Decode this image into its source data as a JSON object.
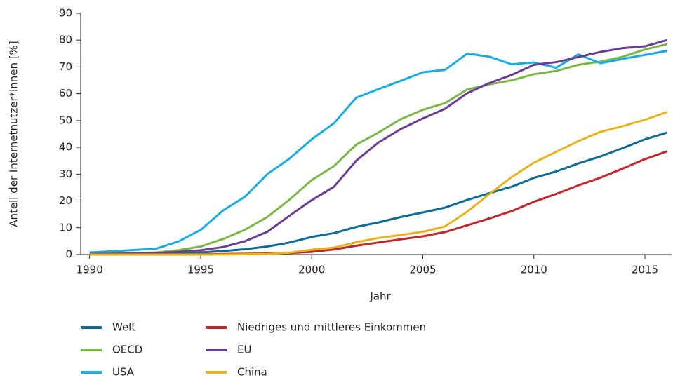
{
  "chart_data": {
    "type": "line",
    "x_label": "Jahr",
    "y_label": "Anteil der Internetnutzer*innen [%]",
    "x": [
      1990,
      1991,
      1992,
      1993,
      1994,
      1995,
      1996,
      1997,
      1998,
      1999,
      2000,
      2001,
      2002,
      2003,
      2004,
      2005,
      2006,
      2007,
      2008,
      2009,
      2010,
      2011,
      2012,
      2013,
      2014,
      2015,
      2016
    ],
    "xlim": [
      1989.6,
      2016.2
    ],
    "xticks": [
      1990,
      1995,
      2000,
      2005,
      2010,
      2015
    ],
    "ylim": [
      0,
      90
    ],
    "yticks": [
      0,
      10,
      20,
      30,
      40,
      50,
      60,
      70,
      80,
      90
    ],
    "grid": false,
    "series": [
      {
        "name": "Welt",
        "color": "#0b6c94",
        "values": [
          0.05,
          0.1,
          0.2,
          0.3,
          0.4,
          0.8,
          1.3,
          2,
          3,
          4.5,
          6.6,
          8,
          10.3,
          12,
          14,
          15.7,
          17.5,
          20.4,
          22.9,
          25.3,
          28.6,
          31,
          34,
          36.6,
          39.7,
          43,
          45.5
        ]
      },
      {
        "name": "OECD",
        "color": "#7ab648",
        "values": [
          0.3,
          0.4,
          0.5,
          0.8,
          1.6,
          3,
          5.8,
          9.3,
          14,
          20.5,
          27.8,
          33,
          41,
          45.5,
          50.5,
          54,
          56.5,
          61.6,
          63.5,
          65,
          67.3,
          68.5,
          70.8,
          72,
          73.8,
          76.5,
          78.5
        ]
      },
      {
        "name": "USA",
        "color": "#1aace0",
        "values": [
          0.8,
          1.2,
          1.7,
          2.2,
          4.9,
          9.2,
          16.4,
          21.6,
          30,
          35.8,
          43,
          49,
          58.5,
          61.7,
          64.8,
          68,
          68.9,
          75,
          73.8,
          71,
          71.7,
          69.7,
          74.7,
          71.4,
          73,
          74.5,
          76
        ]
      },
      {
        "name": "Niedriges und mittleres Einkommen",
        "color": "#c0282d",
        "values": [
          0,
          0,
          0,
          0,
          0.05,
          0.1,
          0.2,
          0.3,
          0.4,
          0.6,
          1,
          1.9,
          3.3,
          4.5,
          5.7,
          6.8,
          8.4,
          10.9,
          13.5,
          16.2,
          19.7,
          22.6,
          25.8,
          28.7,
          32.1,
          35.6,
          38.5
        ]
      },
      {
        "name": "EU",
        "color": "#6a3d91",
        "values": [
          0.2,
          0.3,
          0.4,
          0.6,
          1,
          1.6,
          2.8,
          5,
          8.5,
          14.5,
          20.3,
          25.3,
          35,
          41.8,
          46.8,
          50.8,
          54.4,
          60.2,
          64,
          67,
          70.8,
          71.8,
          73.7,
          75.6,
          77,
          77.7,
          80
        ]
      },
      {
        "name": "China",
        "color": "#e6b31e",
        "values": [
          0,
          0,
          0,
          0,
          0,
          0,
          0,
          0.1,
          0.2,
          0.7,
          1.8,
          2.6,
          4.6,
          6.2,
          7.3,
          8.5,
          10.5,
          16,
          22.6,
          28.9,
          34.3,
          38.3,
          42.3,
          45.8,
          47.9,
          50.3,
          53.2
        ]
      }
    ]
  }
}
